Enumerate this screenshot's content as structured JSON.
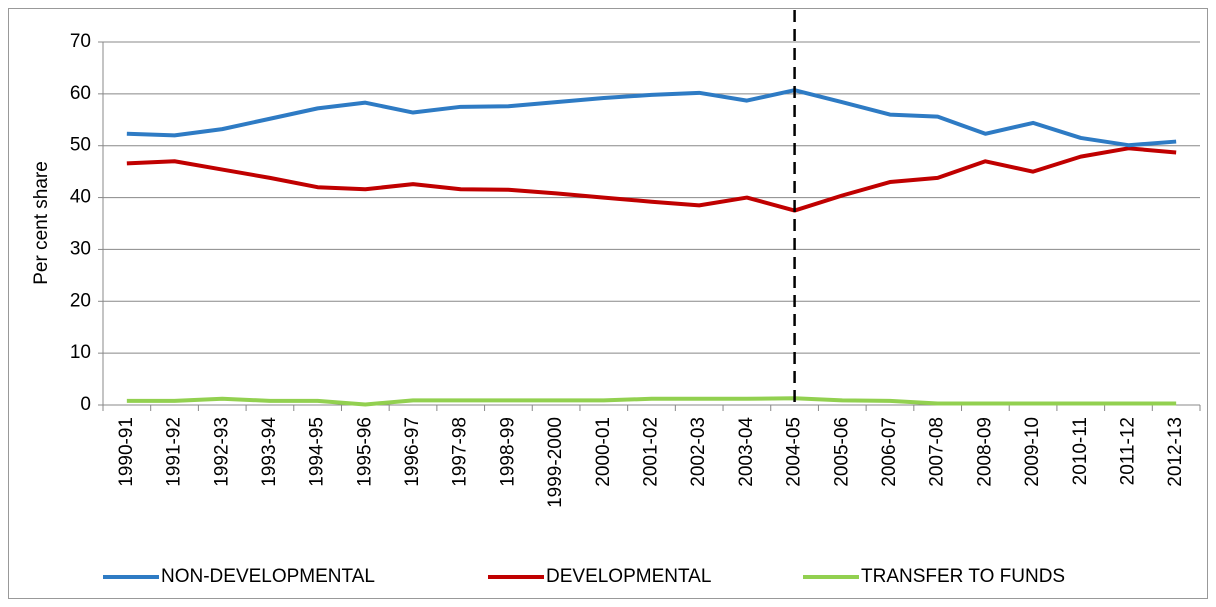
{
  "chart_data": {
    "type": "line",
    "y_label": "Per cent share",
    "categories": [
      "1990-91",
      "1991-92",
      "1992-93",
      "1993-94",
      "1994-95",
      "1995-96",
      "1996-97",
      "1997-98",
      "1998-99",
      "1999-2000",
      "2000-01",
      "2001-02",
      "2002-03",
      "2003-04",
      "2004-05",
      "2005-06",
      "2006-07",
      "2007-08",
      "2008-09",
      "2009-10",
      "2010-11",
      "2011-12",
      "2012-13"
    ],
    "series": [
      {
        "name": "NON-DEVELOPMENTAL",
        "color": "#2e7bc4",
        "values": [
          52.3,
          52,
          53.2,
          55.2,
          57.2,
          58.3,
          56.4,
          57.5,
          57.6,
          58.4,
          59.2,
          59.8,
          60.2,
          58.7,
          60.7,
          58.4,
          56,
          55.6,
          52.3,
          54.4,
          51.5,
          50.1,
          50.8
        ]
      },
      {
        "name": "DEVELOPMENTAL",
        "color": "#c00000",
        "values": [
          46.6,
          47,
          45.4,
          43.8,
          42,
          41.6,
          42.6,
          41.6,
          41.5,
          40.8,
          40,
          39.2,
          38.5,
          40,
          37.5,
          40.4,
          43,
          43.8,
          47,
          45,
          47.9,
          49.5,
          48.7
        ]
      },
      {
        "name": "TRANSFER TO FUNDS",
        "color": "#92d050",
        "values": [
          0.8,
          0.8,
          1.2,
          0.8,
          0.8,
          0.1,
          0.9,
          0.9,
          0.9,
          0.9,
          0.9,
          1.2,
          1.2,
          1.2,
          1.3,
          0.9,
          0.8,
          0.3,
          0.3,
          0.3,
          0.3,
          0.3,
          0.3
        ]
      }
    ],
    "ylim": [
      0,
      70
    ],
    "yticks": [
      0,
      10,
      20,
      30,
      40,
      50,
      60,
      70
    ],
    "grid": true,
    "vline": "2004-05",
    "legend": "bottom"
  }
}
